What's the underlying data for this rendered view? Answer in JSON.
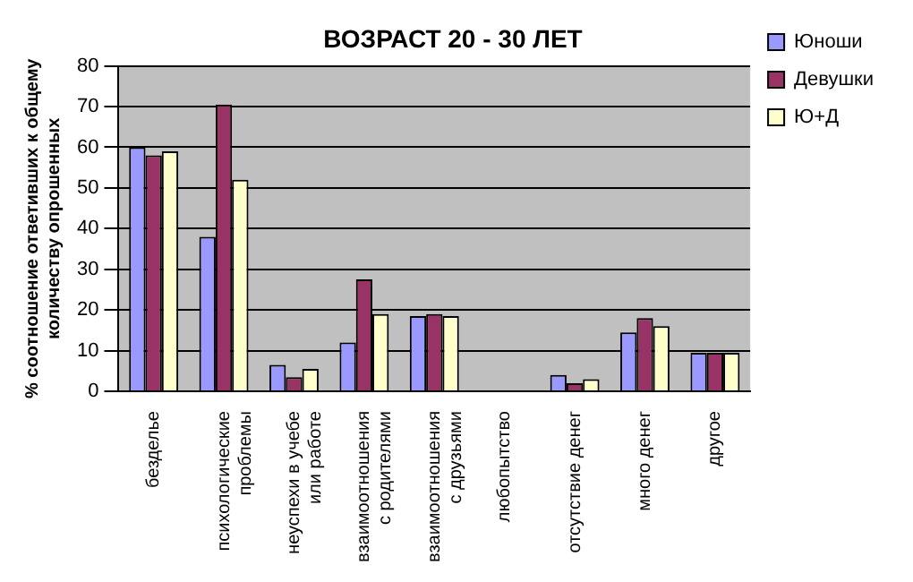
{
  "chart_data": {
    "type": "bar",
    "title": "ВОЗРАСТ 20 - 30 ЛЕТ",
    "ylabel": "% соотношение ответивших к общему\nколичеству опрошенных",
    "categories": [
      "безделье",
      "психологические\nпроблемы",
      "неуспехи в учебе\nили работе",
      "взаимоотношения\nс родителями",
      "взаимоотношения\nс друзьями",
      "любопытство",
      "отсутствие денег",
      "много денег",
      "другое"
    ],
    "series": [
      {
        "name": "Юноши",
        "color": "#9999ff",
        "values": [
          60,
          38,
          6.5,
          12,
          18.5,
          0,
          4,
          14.5,
          9.5
        ]
      },
      {
        "name": "Девушки",
        "color": "#993366",
        "values": [
          58,
          70.5,
          3.5,
          27.5,
          19,
          0,
          2,
          18,
          9.5
        ]
      },
      {
        "name": "Ю+Д",
        "color": "#ffffcc",
        "values": [
          59,
          52,
          5.5,
          19,
          18.5,
          0,
          3,
          16,
          9.5
        ]
      }
    ],
    "ylim": [
      0,
      80
    ],
    "yticks": [
      0,
      10,
      20,
      30,
      40,
      50,
      60,
      70,
      80
    ],
    "grid": "y",
    "legend": "top right"
  }
}
